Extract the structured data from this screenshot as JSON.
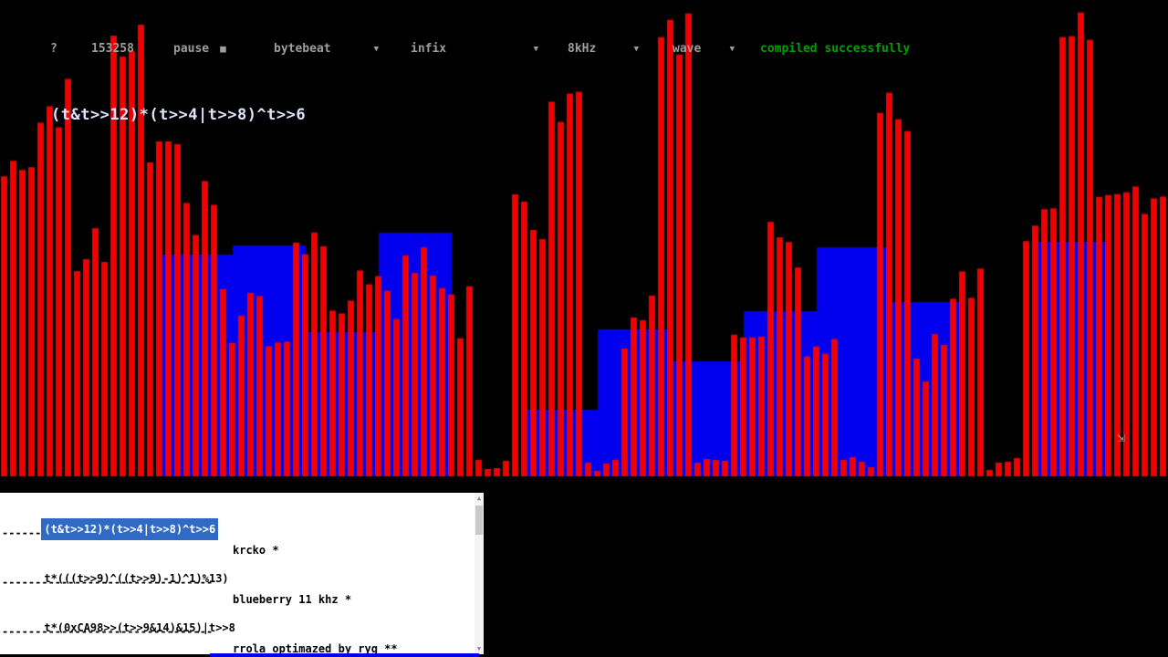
{
  "toolbar": {
    "help_label": "?",
    "time_value": "153258",
    "pause_label": "pause",
    "stop_icon": "■",
    "dropdown_arrow": "▼",
    "mode_value": "bytebeat",
    "notation_value": "infix",
    "sample_rate_value": "8kHz",
    "visualizer_value": "wave",
    "status_text": "compiled successfully",
    "status_color": "#00a000",
    "text_color": "#9d9d9d"
  },
  "editor": {
    "expression": "(t&t>>12)*(t>>4|t>>8)^t>>6"
  },
  "visualizer": {
    "formula": "(t&t>>12)*(t>>4|t>>8)^t>>6",
    "t0": 153258,
    "bar_color": "#f00000",
    "block_color": "#0000ee",
    "background": "#000000",
    "resize_icon": "⇲"
  },
  "playlist": {
    "separator": "--------------------------------",
    "selection_color": "#316ac5",
    "selected_index": 0,
    "rows": [
      {
        "formula": "(t&t>>12)*(t>>4|t>>8)^t>>6",
        "name": "krcko *"
      },
      {
        "formula": "t*(((t>>9)^((t>>9)-1)^1)%13)",
        "name": "blueberry 11 khz *"
      },
      {
        "formula": "t*(0xCA98>>(t>>9&14)&15)|t>>8",
        "name": "rrola optimazed by ryg **"
      }
    ]
  }
}
